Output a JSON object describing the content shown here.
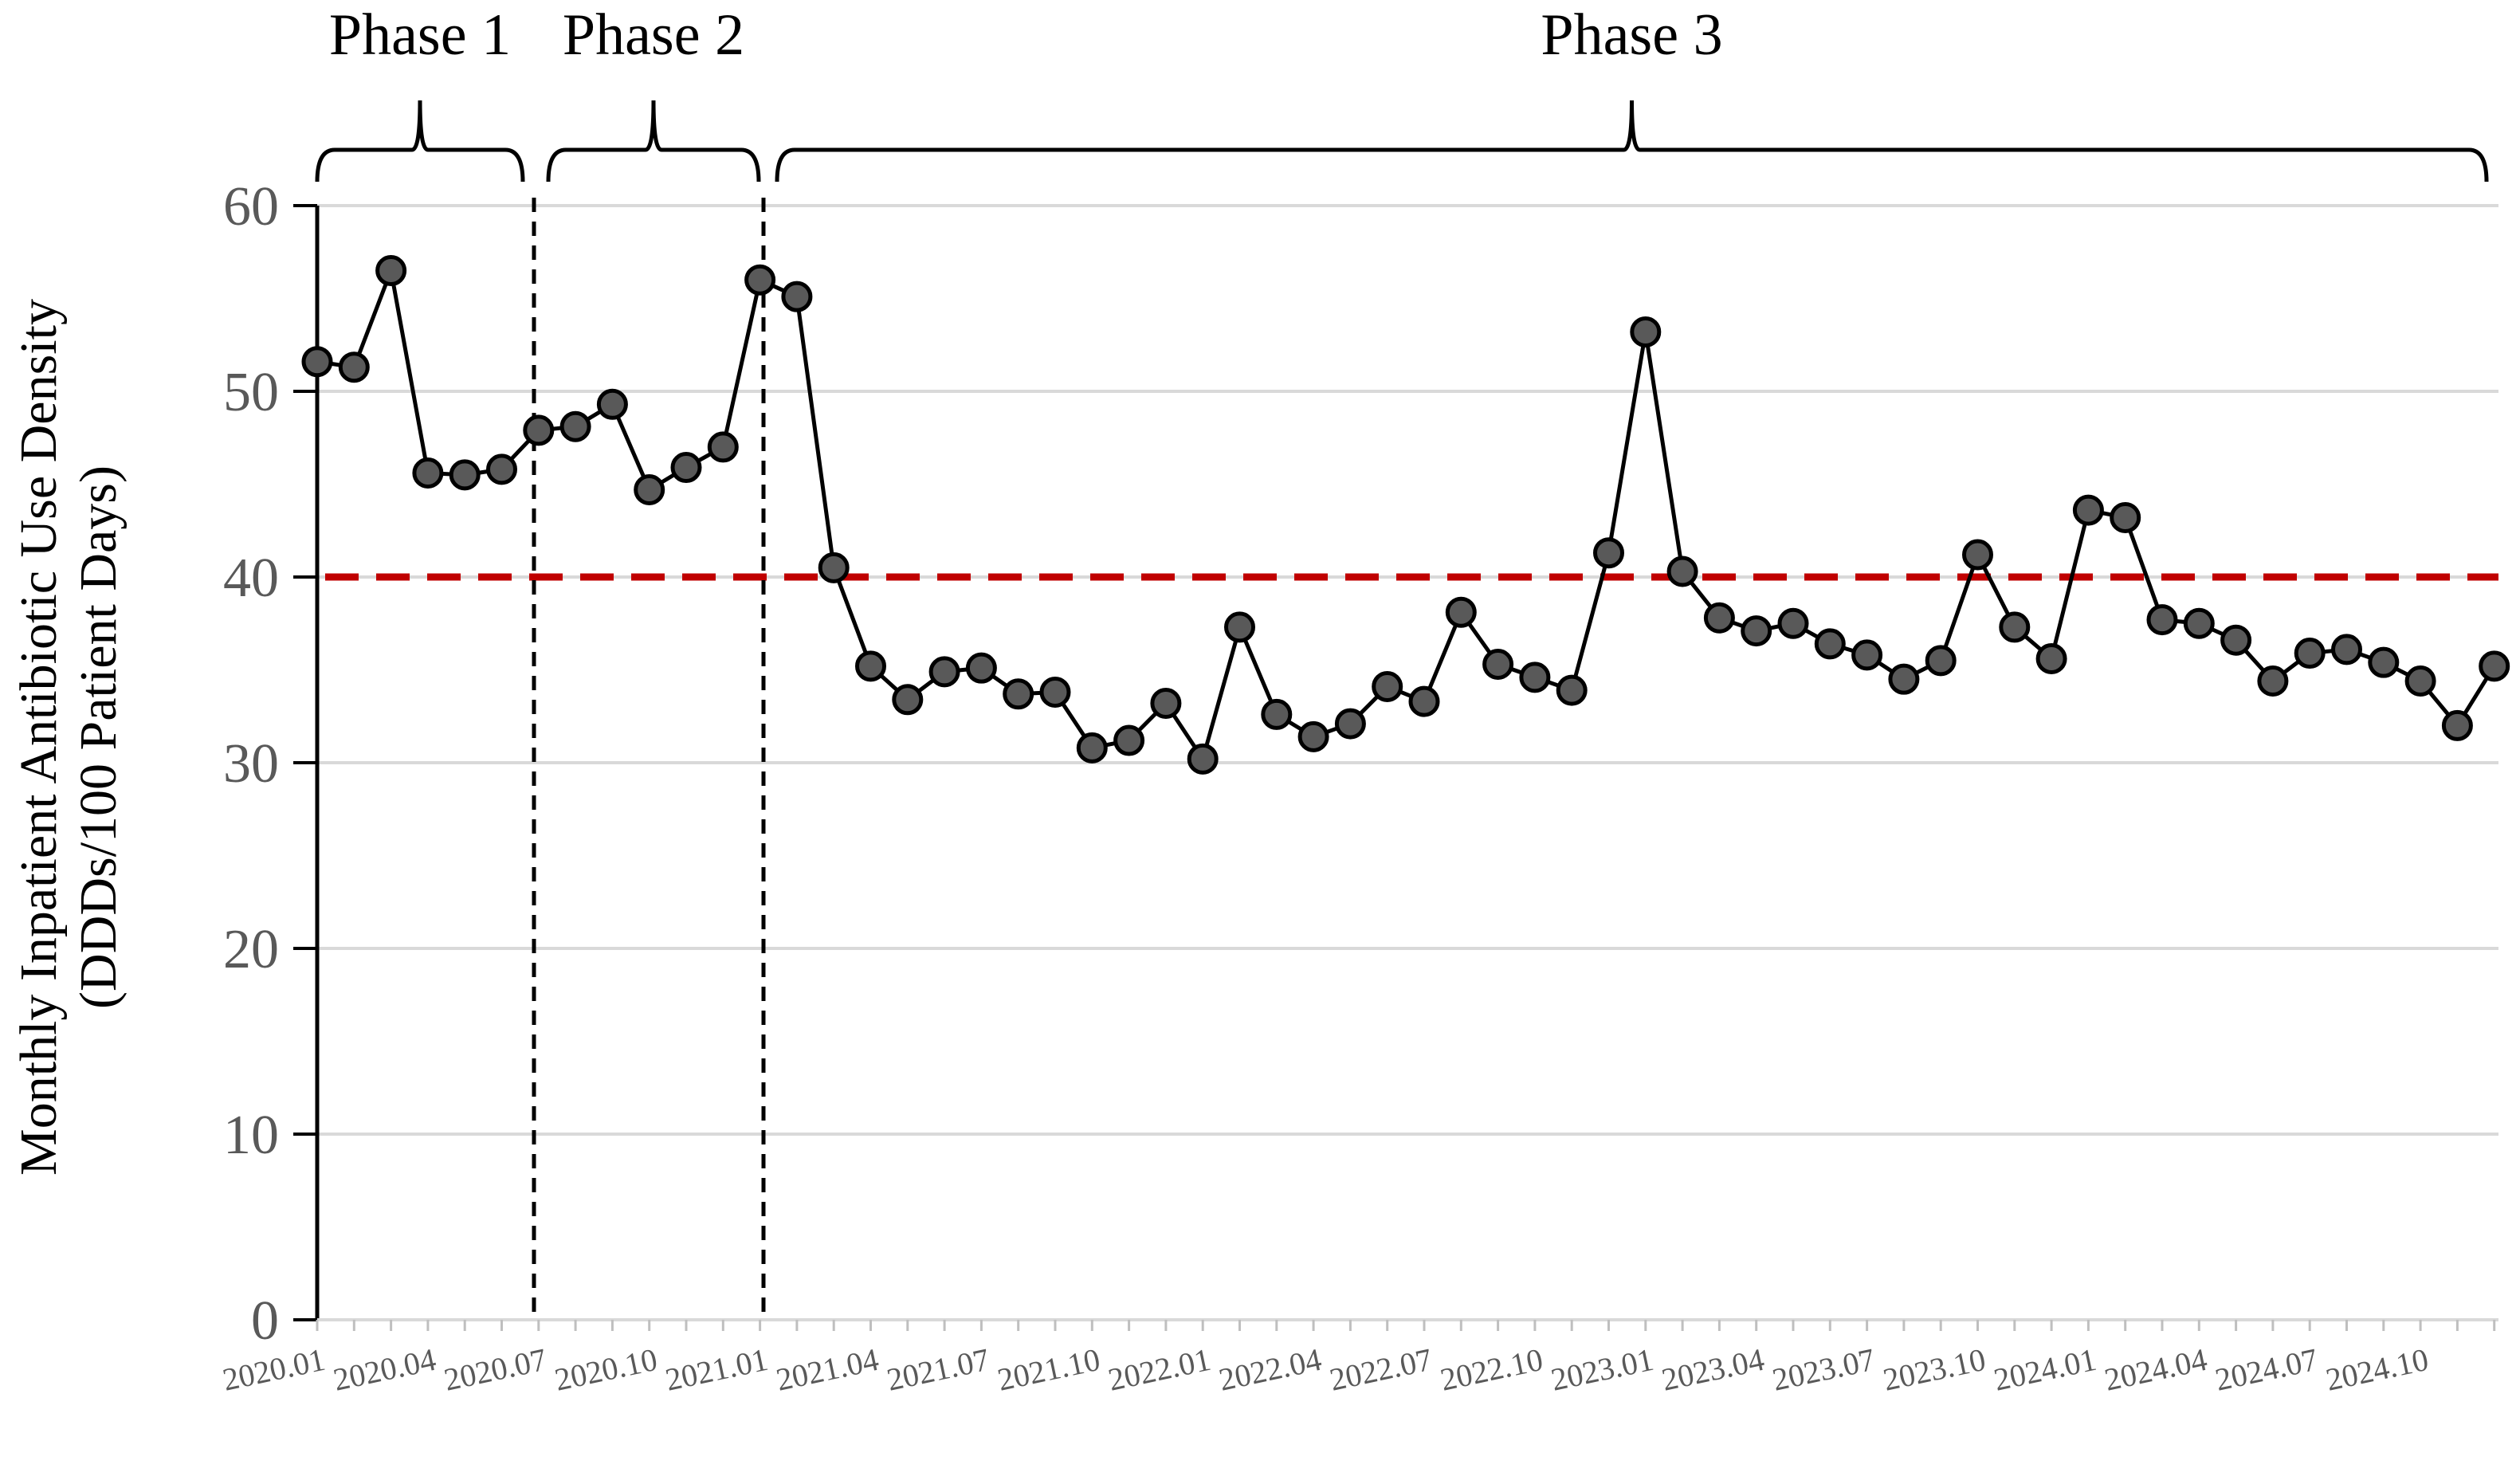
{
  "chart_data": {
    "type": "line",
    "ylabel": [
      "Monthly Inpatient Antibiotic Use Density",
      "(DDDs/100 Patient Days)"
    ],
    "xlabel": "",
    "ylim": [
      0,
      60
    ],
    "yticks": [
      0,
      10,
      20,
      30,
      40,
      50,
      60
    ],
    "grid": true,
    "tick_labels": [
      "2020.01",
      "2020.04",
      "2020.07",
      "2020.10",
      "2021.01",
      "2021.04",
      "2021.07",
      "2021.10",
      "2022.01",
      "2022.04",
      "2022.07",
      "2022.10",
      "2023.01",
      "2023.04",
      "2023.07",
      "2023.10",
      "2024.01",
      "2024.04",
      "2024.07",
      "2024.10"
    ],
    "reference_line": {
      "y": 40,
      "color": "#c00000",
      "style": "dashed"
    },
    "phases": [
      {
        "label": "Phase 1",
        "start": "2020.01",
        "end": "2020.07"
      },
      {
        "label": "Phase 2",
        "start": "2020.08",
        "end": "2021.01"
      },
      {
        "label": "Phase 3",
        "start": "2021.02",
        "end": "2024.12"
      }
    ],
    "phase_dividers": [
      "2020.07",
      "2021.01"
    ],
    "series": [
      {
        "color": "#595959",
        "x": [
          "2020.01",
          "2020.02",
          "2020.03",
          "2020.04",
          "2020.05",
          "2020.06",
          "2020.07",
          "2020.08",
          "2020.09",
          "2020.10",
          "2020.11",
          "2020.12",
          "2021.01",
          "2021.02",
          "2021.03",
          "2021.04",
          "2021.05",
          "2021.06",
          "2021.07",
          "2021.08",
          "2021.09",
          "2021.10",
          "2021.11",
          "2021.12",
          "2022.01",
          "2022.02",
          "2022.03",
          "2022.04",
          "2022.05",
          "2022.06",
          "2022.07",
          "2022.08",
          "2022.09",
          "2022.10",
          "2022.11",
          "2022.12",
          "2023.01",
          "2023.02",
          "2023.03",
          "2023.04",
          "2023.05",
          "2023.06",
          "2023.07",
          "2023.08",
          "2023.09",
          "2023.10",
          "2023.11",
          "2023.12",
          "2024.01",
          "2024.02",
          "2024.03",
          "2024.04",
          "2024.05",
          "2024.06",
          "2024.07",
          "2024.08",
          "2024.09",
          "2024.10",
          "2024.11",
          "2024.12"
        ],
        "values": [
          51.6,
          51.3,
          56.5,
          45.6,
          45.5,
          45.8,
          47.9,
          48.1,
          49.3,
          44.7,
          45.9,
          47.0,
          56.0,
          55.1,
          40.5,
          35.2,
          33.4,
          34.9,
          35.1,
          33.7,
          33.8,
          30.8,
          31.2,
          33.2,
          30.2,
          37.3,
          32.6,
          31.4,
          32.1,
          34.1,
          33.3,
          38.1,
          35.3,
          34.6,
          33.9,
          41.3,
          53.2,
          40.3,
          37.8,
          37.1,
          37.5,
          36.4,
          35.8,
          34.5,
          35.5,
          41.2,
          37.3,
          35.6,
          43.6,
          43.2,
          37.7,
          37.5,
          36.6,
          34.4,
          35.9,
          36.1,
          35.4,
          34.4,
          32.0,
          35.2
        ]
      }
    ]
  }
}
